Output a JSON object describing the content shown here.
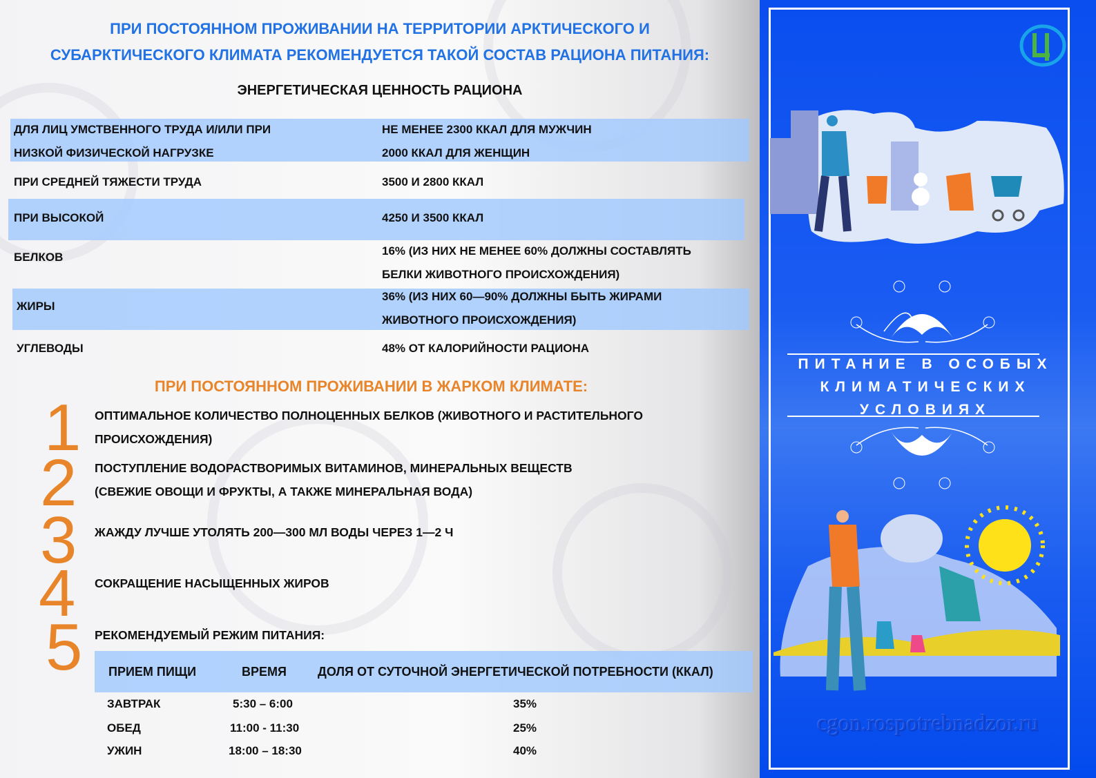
{
  "header": {
    "title_line1": "ПРИ ПОСТОЯННОМ ПРОЖИВАНИИ НА ТЕРРИТОРИИ АРКТИЧЕСКОГО И",
    "title_line2": "СУБАРКТИЧЕСКОГО КЛИМАТА РЕКОМЕНДУЕТСЯ ТАКОЙ СОСТАВ РАЦИОНА ПИТАНИЯ:",
    "subtitle": "ЭНЕРГЕТИЧЕСКАЯ ЦЕННОСТЬ РАЦИОНА"
  },
  "arctic_table": [
    {
      "label": [
        "ДЛЯ ЛИЦ УМСТВЕННОГО ТРУДА И/ИЛИ ПРИ",
        "НИЗКОЙ ФИЗИЧЕСКОЙ НАГРУЗКЕ"
      ],
      "value": [
        "НЕ МЕНЕЕ 2300 ККАЛ ДЛЯ МУЖЧИН",
        "2000 ККАЛ ДЛЯ ЖЕНЩИН"
      ]
    },
    {
      "label": [
        "ПРИ СРЕДНЕЙ ТЯЖЕСТИ ТРУДА"
      ],
      "value": [
        "3500 И 2800 ККАЛ"
      ]
    },
    {
      "label": [
        "ПРИ ВЫСОКОЙ"
      ],
      "value": [
        "4250 И 3500 ККАЛ"
      ]
    },
    {
      "label": [
        "БЕЛКОВ"
      ],
      "value": [
        "16% (ИЗ НИХ НЕ МЕНЕЕ 60% ДОЛЖНЫ СОСТАВЛЯТЬ",
        "БЕЛКИ ЖИВОТНОГО ПРОИСХОЖДЕНИЯ)"
      ]
    },
    {
      "label": [
        "ЖИРЫ"
      ],
      "value": [
        "36% (ИЗ НИХ 60—90% ДОЛЖНЫ БЫТЬ ЖИРАМИ",
        "ЖИВОТНОГО ПРОИСХОЖДЕНИЯ)"
      ]
    },
    {
      "label": [
        "УГЛЕВОДЫ"
      ],
      "value": [
        "48% ОТ КАЛОРИЙНОСТИ РАЦИОНА"
      ]
    }
  ],
  "hot": {
    "heading": "ПРИ ПОСТОЯННОМ ПРОЖИВАНИИ В ЖАРКОМ КЛИМАТЕ:",
    "items": [
      {
        "num": "1",
        "lines": [
          "ОПТИМАЛЬНОЕ КОЛИЧЕСТВО ПОЛНОЦЕННЫХ БЕЛКОВ (ЖИВОТНОГО И РАСТИТЕЛЬНОГО",
          "ПРОИСХОЖДЕНИЯ)"
        ]
      },
      {
        "num": "2",
        "lines": [
          "ПОСТУПЛЕНИЕ ВОДОРАСТВОРИМЫХ ВИТАМИНОВ, МИНЕРАЛЬНЫХ ВЕЩЕСТВ",
          "(СВЕЖИЕ ОВОЩИ И ФРУКТЫ, А ТАКЖЕ МИНЕРАЛЬНАЯ ВОДА)"
        ]
      },
      {
        "num": "3",
        "lines": [
          "ЖАЖДУ ЛУЧШЕ УТОЛЯТЬ 200—300 МЛ ВОДЫ ЧЕРЕЗ 1—2 Ч"
        ]
      },
      {
        "num": "4",
        "lines": [
          "СОКРАЩЕНИЕ НАСЫЩЕННЫХ ЖИРОВ"
        ]
      },
      {
        "num": "5",
        "lines": [
          "РЕКОМЕНДУЕМЫЙ РЕЖИМ ПИТАНИЯ:"
        ]
      }
    ]
  },
  "meal_table": {
    "headers": [
      "ПРИЕМ ПИЩИ",
      "ВРЕМЯ",
      "ДОЛЯ ОТ СУТОЧНОЙ ЭНЕРГЕТИЧЕСКОЙ ПОТРЕБНОСТИ (ККАЛ)"
    ],
    "rows": [
      [
        "ЗАВТРАК",
        "5:30 – 6:00",
        "35%"
      ],
      [
        "ОБЕД",
        "11:00 - 11:30",
        "25%"
      ],
      [
        "УЖИН",
        "18:00 – 18:30",
        "40%"
      ]
    ]
  },
  "sidebar": {
    "title": [
      "ПИТАНИЕ В ОСОБЫХ",
      "КЛИМАТИЧЕСКИХ",
      "УСЛОВИЯХ"
    ],
    "logo": "Ц",
    "watermark": "cgon.rospotrebnadzor.ru"
  },
  "colors": {
    "title_blue": "#2272e4",
    "accent_orange": "#e8852a",
    "panel_blue": "#0a4ef0",
    "band": "#a0c8ff"
  }
}
